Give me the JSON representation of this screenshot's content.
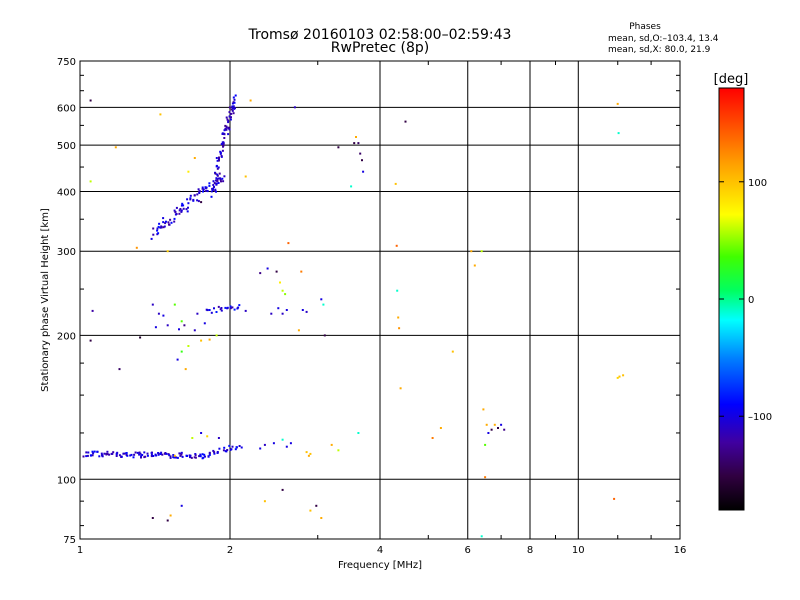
{
  "header": {
    "title": "Tromsø 20160103 02:58:00–02:59:43",
    "subtitle": "RwPretec (8p)",
    "phases_title": "Phases",
    "phases_o": "mean, sd,O:–103.4, 13.4",
    "phases_x": "mean, sd,X:  80.0, 21.9"
  },
  "colorbar": {
    "label": "[deg]",
    "ticks": [
      "100",
      "0",
      "–100"
    ],
    "tick_values": [
      100,
      0,
      -100
    ],
    "range": [
      -180,
      180
    ]
  },
  "chart_data": {
    "type": "scatter",
    "xlabel": "Frequency [MHz]",
    "ylabel": "Stationary phase Virtual Height [km]",
    "xscale": "log",
    "yscale": "log",
    "xlim": [
      1,
      16
    ],
    "ylim": [
      75,
      750
    ],
    "xticks": [
      1,
      2,
      4,
      6,
      8,
      10,
      16
    ],
    "xtick_labels": [
      "1",
      "2",
      "4",
      "6",
      "8",
      "10",
      "16"
    ],
    "yticks": [
      75,
      100,
      200,
      300,
      400,
      500,
      600,
      750
    ],
    "ytick_labels": [
      "75",
      "100",
      "200",
      "300",
      "400",
      "500",
      "600",
      "750"
    ],
    "grid": true,
    "traces": [
      {
        "x_start": 1.02,
        "x_end": 1.8,
        "y_start": 113,
        "y_end": 112,
        "count": 110,
        "jitter": 1.5,
        "phase": -105
      },
      {
        "x_start": 1.8,
        "x_end": 2.1,
        "y_start": 112,
        "y_end": 118,
        "count": 25,
        "jitter": 1.5,
        "phase": -100
      },
      {
        "x_start": 1.4,
        "x_end": 1.95,
        "y_start": 325,
        "y_end": 430,
        "count": 90,
        "jitter": 10,
        "phase": -105
      },
      {
        "x_start": 1.85,
        "x_end": 2.05,
        "y_start": 400,
        "y_end": 630,
        "count": 80,
        "jitter": 15,
        "phase": -110
      },
      {
        "x_start": 1.8,
        "x_end": 2.1,
        "y_start": 225,
        "y_end": 230,
        "count": 20,
        "jitter": 3,
        "phase": -100
      }
    ],
    "points": [
      {
        "x": 1.05,
        "y": 620,
        "phase": -150
      },
      {
        "x": 1.06,
        "y": 225,
        "phase": -120
      },
      {
        "x": 1.05,
        "y": 195,
        "phase": -150
      },
      {
        "x": 1.05,
        "y": 420,
        "phase": 60
      },
      {
        "x": 1.18,
        "y": 495,
        "phase": 110
      },
      {
        "x": 1.2,
        "y": 170,
        "phase": -140
      },
      {
        "x": 1.3,
        "y": 305,
        "phase": 120
      },
      {
        "x": 1.32,
        "y": 198,
        "phase": -160
      },
      {
        "x": 1.45,
        "y": 580,
        "phase": 100
      },
      {
        "x": 1.5,
        "y": 300,
        "phase": 95
      },
      {
        "x": 1.4,
        "y": 232,
        "phase": -110
      },
      {
        "x": 1.44,
        "y": 222,
        "phase": -110
      },
      {
        "x": 1.47,
        "y": 220,
        "phase": -100
      },
      {
        "x": 1.55,
        "y": 232,
        "phase": 40
      },
      {
        "x": 1.6,
        "y": 214,
        "phase": 40
      },
      {
        "x": 1.42,
        "y": 208,
        "phase": -100
      },
      {
        "x": 1.5,
        "y": 210,
        "phase": -110
      },
      {
        "x": 1.58,
        "y": 206,
        "phase": -100
      },
      {
        "x": 1.62,
        "y": 210,
        "phase": -130
      },
      {
        "x": 1.7,
        "y": 205,
        "phase": -110
      },
      {
        "x": 1.65,
        "y": 190,
        "phase": 60
      },
      {
        "x": 1.6,
        "y": 185,
        "phase": 30
      },
      {
        "x": 1.57,
        "y": 178,
        "phase": -100
      },
      {
        "x": 1.63,
        "y": 170,
        "phase": 110
      },
      {
        "x": 1.75,
        "y": 195,
        "phase": 100
      },
      {
        "x": 1.82,
        "y": 196,
        "phase": 110
      },
      {
        "x": 1.88,
        "y": 200,
        "phase": 60
      },
      {
        "x": 1.78,
        "y": 212,
        "phase": -100
      },
      {
        "x": 1.72,
        "y": 222,
        "phase": -110
      },
      {
        "x": 1.68,
        "y": 122,
        "phase": 60
      },
      {
        "x": 1.75,
        "y": 125,
        "phase": -100
      },
      {
        "x": 1.8,
        "y": 123,
        "phase": 90
      },
      {
        "x": 1.9,
        "y": 122,
        "phase": -110
      },
      {
        "x": 1.55,
        "y": 112,
        "phase": 100
      },
      {
        "x": 1.52,
        "y": 84,
        "phase": 110
      },
      {
        "x": 1.5,
        "y": 82,
        "phase": -150
      },
      {
        "x": 1.4,
        "y": 83,
        "phase": -150
      },
      {
        "x": 1.6,
        "y": 88,
        "phase": -100
      },
      {
        "x": 1.65,
        "y": 440,
        "phase": 80
      },
      {
        "x": 1.7,
        "y": 470,
        "phase": 110
      },
      {
        "x": 1.75,
        "y": 380,
        "phase": -150
      },
      {
        "x": 2.15,
        "y": 430,
        "phase": 100
      },
      {
        "x": 2.2,
        "y": 620,
        "phase": 110
      },
      {
        "x": 2.15,
        "y": 225,
        "phase": -110
      },
      {
        "x": 2.3,
        "y": 270,
        "phase": -130
      },
      {
        "x": 2.38,
        "y": 276,
        "phase": -100
      },
      {
        "x": 2.42,
        "y": 222,
        "phase": -110
      },
      {
        "x": 2.48,
        "y": 272,
        "phase": -150
      },
      {
        "x": 2.52,
        "y": 258,
        "phase": 80
      },
      {
        "x": 2.55,
        "y": 248,
        "phase": 60
      },
      {
        "x": 2.58,
        "y": 244,
        "phase": 50
      },
      {
        "x": 2.5,
        "y": 228,
        "phase": -100
      },
      {
        "x": 2.6,
        "y": 226,
        "phase": -100
      },
      {
        "x": 2.55,
        "y": 222,
        "phase": -110
      },
      {
        "x": 2.62,
        "y": 312,
        "phase": 140
      },
      {
        "x": 2.7,
        "y": 600,
        "phase": -110
      },
      {
        "x": 2.75,
        "y": 205,
        "phase": 110
      },
      {
        "x": 2.78,
        "y": 272,
        "phase": 130
      },
      {
        "x": 2.8,
        "y": 226,
        "phase": -100
      },
      {
        "x": 2.85,
        "y": 224,
        "phase": -110
      },
      {
        "x": 3.05,
        "y": 238,
        "phase": -100
      },
      {
        "x": 3.08,
        "y": 232,
        "phase": -10
      },
      {
        "x": 3.1,
        "y": 200,
        "phase": -150
      },
      {
        "x": 2.3,
        "y": 116,
        "phase": -100
      },
      {
        "x": 2.35,
        "y": 118,
        "phase": -110
      },
      {
        "x": 2.45,
        "y": 119,
        "phase": -100
      },
      {
        "x": 2.55,
        "y": 121,
        "phase": -10
      },
      {
        "x": 2.6,
        "y": 117,
        "phase": -100
      },
      {
        "x": 2.65,
        "y": 119,
        "phase": -100
      },
      {
        "x": 2.85,
        "y": 114,
        "phase": 100
      },
      {
        "x": 2.88,
        "y": 112,
        "phase": 110
      },
      {
        "x": 2.9,
        "y": 113,
        "phase": 100
      },
      {
        "x": 2.35,
        "y": 90,
        "phase": 100
      },
      {
        "x": 2.55,
        "y": 95,
        "phase": -150
      },
      {
        "x": 2.9,
        "y": 86,
        "phase": 100
      },
      {
        "x": 2.98,
        "y": 88,
        "phase": -150
      },
      {
        "x": 3.05,
        "y": 83,
        "phase": 110
      },
      {
        "x": 3.2,
        "y": 118,
        "phase": 110
      },
      {
        "x": 3.3,
        "y": 115,
        "phase": 60
      },
      {
        "x": 3.3,
        "y": 495,
        "phase": -150
      },
      {
        "x": 3.5,
        "y": 410,
        "phase": -10
      },
      {
        "x": 3.55,
        "y": 505,
        "phase": -150
      },
      {
        "x": 3.58,
        "y": 520,
        "phase": 110
      },
      {
        "x": 3.62,
        "y": 505,
        "phase": -140
      },
      {
        "x": 3.65,
        "y": 480,
        "phase": -140
      },
      {
        "x": 3.68,
        "y": 465,
        "phase": -150
      },
      {
        "x": 3.7,
        "y": 440,
        "phase": -100
      },
      {
        "x": 3.62,
        "y": 125,
        "phase": -10
      },
      {
        "x": 4.3,
        "y": 415,
        "phase": 100
      },
      {
        "x": 4.32,
        "y": 308,
        "phase": 140
      },
      {
        "x": 4.33,
        "y": 248,
        "phase": -10
      },
      {
        "x": 4.35,
        "y": 218,
        "phase": 110
      },
      {
        "x": 4.37,
        "y": 207,
        "phase": 120
      },
      {
        "x": 4.4,
        "y": 155,
        "phase": 110
      },
      {
        "x": 4.5,
        "y": 560,
        "phase": -150
      },
      {
        "x": 5.1,
        "y": 122,
        "phase": 130
      },
      {
        "x": 5.3,
        "y": 128,
        "phase": 110
      },
      {
        "x": 5.6,
        "y": 185,
        "phase": 100
      },
      {
        "x": 6.1,
        "y": 300,
        "phase": 110
      },
      {
        "x": 6.2,
        "y": 280,
        "phase": 110
      },
      {
        "x": 6.4,
        "y": 300,
        "phase": 60
      },
      {
        "x": 6.45,
        "y": 140,
        "phase": 110
      },
      {
        "x": 6.55,
        "y": 130,
        "phase": 110
      },
      {
        "x": 6.5,
        "y": 118,
        "phase": 40
      },
      {
        "x": 6.6,
        "y": 125,
        "phase": -100
      },
      {
        "x": 6.7,
        "y": 127,
        "phase": -150
      },
      {
        "x": 6.8,
        "y": 130,
        "phase": 110
      },
      {
        "x": 6.9,
        "y": 128,
        "phase": -150
      },
      {
        "x": 7.0,
        "y": 130,
        "phase": -100
      },
      {
        "x": 7.1,
        "y": 127,
        "phase": -130
      },
      {
        "x": 6.5,
        "y": 101,
        "phase": 130
      },
      {
        "x": 6.4,
        "y": 76,
        "phase": -10
      },
      {
        "x": 12.0,
        "y": 610,
        "phase": 110
      },
      {
        "x": 12.05,
        "y": 530,
        "phase": -10
      },
      {
        "x": 12.0,
        "y": 163,
        "phase": 90
      },
      {
        "x": 12.1,
        "y": 164,
        "phase": 100
      },
      {
        "x": 12.3,
        "y": 165,
        "phase": 100
      },
      {
        "x": 11.8,
        "y": 91,
        "phase": 140
      }
    ]
  }
}
